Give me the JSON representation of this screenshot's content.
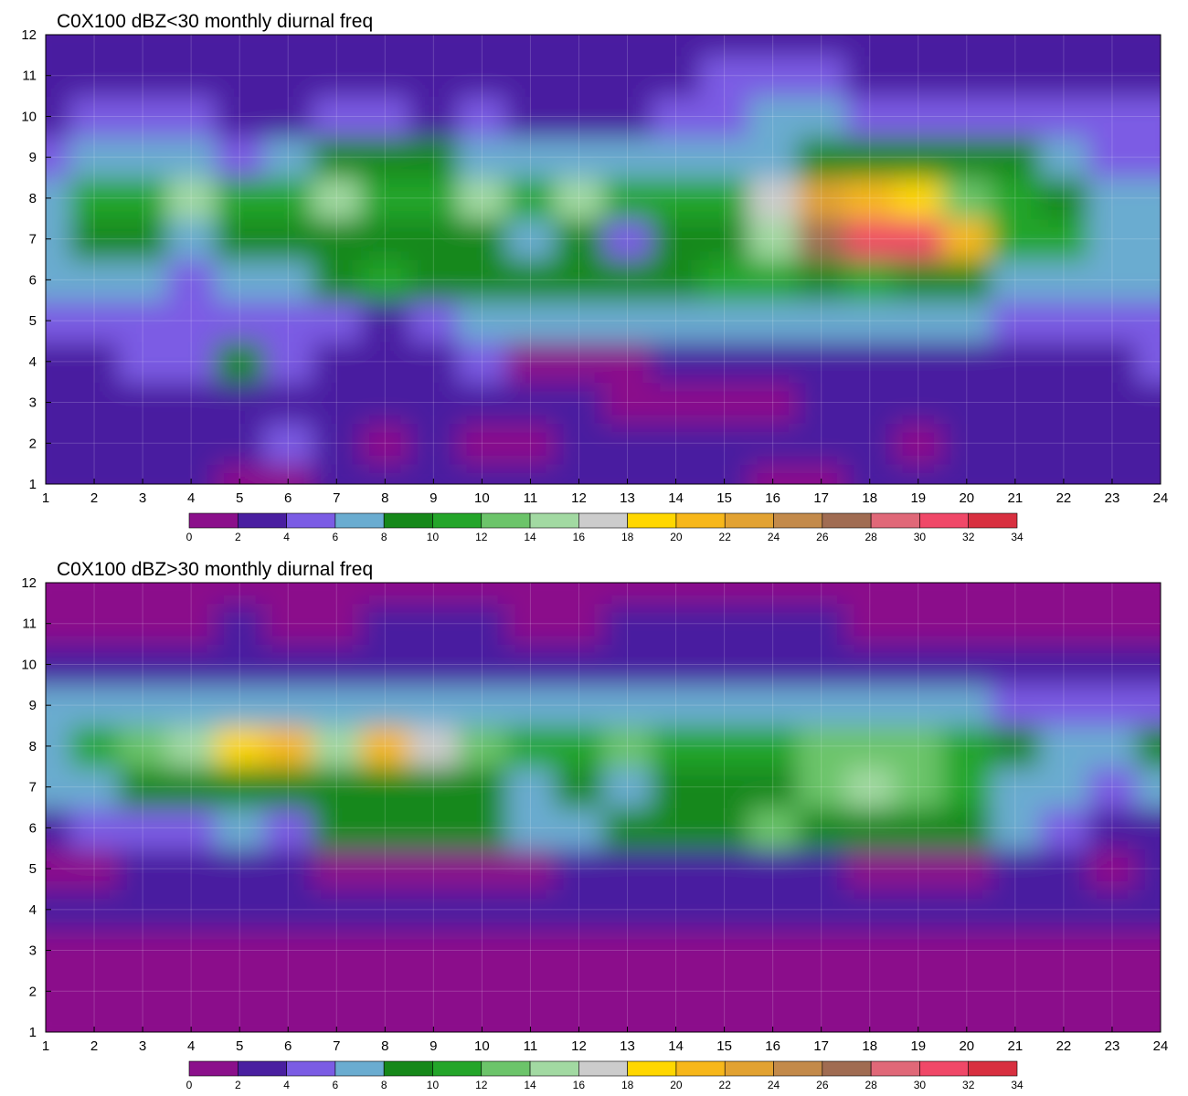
{
  "chart_data": [
    {
      "type": "heatmap",
      "title": "C0X100 dBZ<30 monthly diurnal freq",
      "xlabel": "",
      "ylabel": "",
      "xlim": [
        1,
        24
      ],
      "ylim": [
        1,
        12
      ],
      "x_ticks": [
        1,
        2,
        3,
        4,
        5,
        6,
        7,
        8,
        9,
        10,
        11,
        12,
        13,
        14,
        15,
        16,
        17,
        18,
        19,
        20,
        21,
        22,
        23,
        24
      ],
      "y_ticks": [
        1,
        2,
        3,
        4,
        5,
        6,
        7,
        8,
        9,
        10,
        11,
        12
      ],
      "contour_levels": [
        0,
        2,
        4,
        6,
        8,
        10,
        12,
        14,
        16,
        18,
        20,
        22,
        24,
        26,
        28,
        30,
        32,
        34
      ],
      "colorbar_colors": [
        "#8b108b",
        "#4a1fa0",
        "#7b5ce4",
        "#6aacd0",
        "#16881a",
        "#24a52a",
        "#6cc46a",
        "#a2d9a2",
        "#cccccc",
        "#ffd700",
        "#f7b71a",
        "#e2a232",
        "#c38a4a",
        "#a06c52",
        "#e06878",
        "#f04868",
        "#d83040"
      ],
      "grid": true,
      "legend": "colorbar-bottom",
      "z": [
        [
          3,
          3,
          3,
          2,
          1,
          1,
          2,
          2,
          3,
          3,
          3,
          2,
          3,
          3,
          2,
          1,
          1,
          2,
          2,
          3,
          3,
          3,
          3,
          3
        ],
        [
          3,
          3,
          3,
          3,
          2,
          5,
          3,
          1,
          2,
          1,
          1,
          3,
          3,
          3,
          3,
          3,
          3,
          2,
          1,
          3,
          3,
          3,
          3,
          3
        ],
        [
          3,
          3,
          3,
          3,
          3,
          3,
          3,
          3,
          2,
          2,
          2,
          2,
          1,
          1,
          1,
          1,
          2,
          3,
          3,
          3,
          3,
          3,
          3,
          3
        ],
        [
          3,
          3,
          4,
          5,
          8,
          5,
          3,
          3,
          3,
          4,
          1,
          1,
          1,
          3,
          3,
          3,
          3,
          3,
          3,
          3,
          3,
          3,
          3,
          5
        ],
        [
          4,
          4,
          5,
          5,
          5,
          5,
          5,
          2,
          5,
          6,
          6,
          6,
          6,
          6,
          6,
          6,
          7,
          6,
          6,
          6,
          4,
          5,
          4,
          4
        ],
        [
          6,
          6,
          6,
          5,
          6,
          7,
          9,
          10,
          9,
          8,
          8,
          9,
          9,
          9,
          10,
          10,
          9,
          11,
          9,
          8,
          7,
          6,
          6,
          7
        ],
        [
          6,
          9,
          8,
          7,
          9,
          9,
          8,
          9,
          9,
          8,
          6,
          9,
          5,
          8,
          8,
          14,
          26,
          30,
          30,
          20,
          10,
          10,
          7,
          6
        ],
        [
          7,
          10,
          10,
          14,
          10,
          10,
          14,
          10,
          10,
          14,
          10,
          14,
          10,
          10,
          10,
          16,
          22,
          20,
          18,
          13,
          10,
          8,
          6,
          6
        ],
        [
          5,
          6,
          7,
          7,
          5,
          7,
          8,
          8,
          8,
          7,
          7,
          7,
          7,
          6,
          6,
          7,
          9,
          9,
          9,
          8,
          8,
          6,
          5,
          5
        ],
        [
          3,
          4,
          4,
          4,
          3,
          3,
          4,
          4,
          3,
          4,
          2,
          3,
          3,
          4,
          4,
          6,
          6,
          5,
          5,
          5,
          4,
          4,
          4,
          4
        ],
        [
          3,
          3,
          3,
          3,
          3,
          3,
          3,
          3,
          3,
          3,
          3,
          3,
          3,
          3,
          4,
          4,
          4,
          3,
          3,
          3,
          3,
          3,
          3,
          3
        ],
        [
          3,
          3,
          3,
          3,
          3,
          3,
          3,
          3,
          3,
          3,
          3,
          3,
          3,
          3,
          3,
          3,
          3,
          3,
          3,
          3,
          3,
          3,
          3,
          3
        ]
      ]
    },
    {
      "type": "heatmap",
      "title": "C0X100 dBZ>30 monthly diurnal freq",
      "xlabel": "",
      "ylabel": "",
      "xlim": [
        1,
        24
      ],
      "ylim": [
        1,
        12
      ],
      "x_ticks": [
        1,
        2,
        3,
        4,
        5,
        6,
        7,
        8,
        9,
        10,
        11,
        12,
        13,
        14,
        15,
        16,
        17,
        18,
        19,
        20,
        21,
        22,
        23,
        24
      ],
      "y_ticks": [
        1,
        2,
        3,
        4,
        5,
        6,
        7,
        8,
        9,
        10,
        11,
        12
      ],
      "contour_levels": [
        0,
        2,
        4,
        6,
        8,
        10,
        12,
        14,
        16,
        18,
        20,
        22,
        24,
        26,
        28,
        30,
        32,
        34
      ],
      "colorbar_colors": [
        "#8b108b",
        "#4a1fa0",
        "#7b5ce4",
        "#6aacd0",
        "#16881a",
        "#24a52a",
        "#6cc46a",
        "#a2d9a2",
        "#cccccc",
        "#ffd700",
        "#f7b71a",
        "#e2a232",
        "#c38a4a",
        "#a06c52",
        "#e06878",
        "#f04868",
        "#d83040"
      ],
      "grid": true,
      "legend": "colorbar-bottom",
      "z": [
        [
          1,
          1,
          1,
          1,
          1,
          1,
          1,
          1,
          1,
          1,
          1,
          1,
          1,
          1,
          1,
          1,
          1,
          1,
          1,
          1,
          1,
          1,
          1,
          1
        ],
        [
          1,
          1,
          1,
          1,
          1,
          1,
          1,
          1,
          1,
          1,
          1,
          1,
          1,
          1,
          1,
          1,
          1,
          1,
          1,
          1,
          1,
          1,
          1,
          1
        ],
        [
          1,
          1,
          1,
          1,
          1,
          1,
          1,
          1,
          1,
          1,
          1,
          1,
          1,
          1,
          1,
          1,
          1,
          1,
          1,
          1,
          1,
          1,
          1,
          1
        ],
        [
          3,
          3,
          3,
          3,
          3,
          3,
          3,
          3,
          3,
          3,
          3,
          3,
          3,
          3,
          3,
          3,
          3,
          3,
          3,
          3,
          3,
          3,
          3,
          3
        ],
        [
          1,
          1,
          3,
          3,
          3,
          3,
          1,
          1,
          1,
          1,
          1,
          3,
          3,
          3,
          3,
          3,
          3,
          1,
          1,
          1,
          3,
          3,
          1,
          3
        ],
        [
          3,
          5,
          5,
          5,
          6,
          5,
          9,
          9,
          9,
          9,
          7,
          7,
          9,
          9,
          9,
          12,
          9,
          9,
          9,
          9,
          7,
          5,
          3,
          3
        ],
        [
          6,
          7,
          8,
          9,
          9,
          9,
          9,
          9,
          9,
          8,
          6,
          8,
          6,
          9,
          9,
          9,
          12,
          15,
          12,
          10,
          7,
          6,
          4,
          6
        ],
        [
          7,
          10,
          12,
          14,
          18,
          20,
          14,
          20,
          16,
          12,
          10,
          10,
          12,
          10,
          10,
          10,
          12,
          12,
          12,
          10,
          8,
          6,
          7,
          8
        ],
        [
          6,
          6,
          6,
          6,
          7,
          7,
          7,
          7,
          7,
          6,
          6,
          6,
          6,
          6,
          6,
          6,
          6,
          6,
          6,
          6,
          5,
          5,
          5,
          5
        ],
        [
          3,
          3,
          3,
          3,
          3,
          3,
          3,
          3,
          3,
          3,
          3,
          3,
          3,
          3,
          3,
          3,
          3,
          3,
          3,
          3,
          3,
          3,
          3,
          3
        ],
        [
          1,
          1,
          1,
          1,
          3,
          1,
          1,
          3,
          3,
          3,
          1,
          1,
          3,
          3,
          3,
          3,
          3,
          1,
          1,
          1,
          1,
          1,
          1,
          1
        ],
        [
          1,
          1,
          1,
          1,
          1,
          1,
          1,
          1,
          1,
          1,
          1,
          1,
          1,
          1,
          1,
          1,
          1,
          1,
          1,
          1,
          1,
          1,
          1,
          1
        ]
      ]
    }
  ]
}
